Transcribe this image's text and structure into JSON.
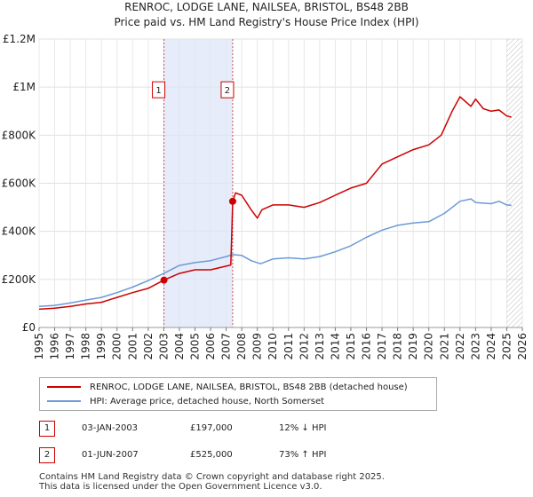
{
  "chart_data": {
    "type": "line",
    "title": "RENROC, LODGE LANE, NAILSEA, BRISTOL, BS48 2BB",
    "subtitle": "Price paid vs. HM Land Registry's House Price Index (HPI)",
    "xlim": [
      1995,
      2026
    ],
    "ylim": [
      0,
      1200000
    ],
    "x_ticks": [
      "1995",
      "1996",
      "1997",
      "1998",
      "1999",
      "2000",
      "2001",
      "2002",
      "2003",
      "2004",
      "2005",
      "2006",
      "2007",
      "2008",
      "2009",
      "2010",
      "2011",
      "2012",
      "2013",
      "2014",
      "2015",
      "2016",
      "2017",
      "2018",
      "2019",
      "2020",
      "2021",
      "2022",
      "2023",
      "2024",
      "2025",
      "2026"
    ],
    "y_ticks": [
      {
        "value": 0,
        "label": "£0"
      },
      {
        "value": 200000,
        "label": "£200K"
      },
      {
        "value": 400000,
        "label": "£400K"
      },
      {
        "value": 600000,
        "label": "£600K"
      },
      {
        "value": 800000,
        "label": "£800K"
      },
      {
        "value": 1000000,
        "label": "£1M"
      },
      {
        "value": 1200000,
        "label": "£1.2M"
      }
    ],
    "series": [
      {
        "name": "RENROC, LODGE LANE, NAILSEA, BRISTOL, BS48 2BB (detached house)",
        "color": "#cc0000",
        "x": [
          1995.0,
          1996.0,
          1997.0,
          1998.0,
          1999.0,
          2000.0,
          2001.0,
          2002.0,
          2003.01,
          2004.0,
          2005.0,
          2006.0,
          2007.0,
          2007.3,
          2007.42,
          2007.6,
          2008.0,
          2008.6,
          2009.0,
          2009.3,
          2010.0,
          2011.0,
          2012.0,
          2013.0,
          2014.0,
          2015.0,
          2016.0,
          2016.5,
          2017.0,
          2018.0,
          2019.0,
          2020.0,
          2020.8,
          2021.5,
          2022.0,
          2022.7,
          2023.0,
          2023.5,
          2024.0,
          2024.5,
          2025.0,
          2025.3
        ],
        "y": [
          76000,
          80000,
          88000,
          98000,
          105000,
          125000,
          145000,
          163000,
          197000,
          225000,
          240000,
          240000,
          255000,
          260000,
          525000,
          560000,
          550000,
          490000,
          455000,
          490000,
          510000,
          510000,
          500000,
          520000,
          550000,
          580000,
          600000,
          640000,
          680000,
          710000,
          740000,
          760000,
          800000,
          900000,
          960000,
          920000,
          950000,
          910000,
          900000,
          905000,
          880000,
          875000
        ]
      },
      {
        "name": "HPI: Average price, detached house, North Somerset",
        "color": "#6b9ad6",
        "x": [
          1995.0,
          1996.0,
          1997.0,
          1998.0,
          1999.0,
          2000.0,
          2001.0,
          2002.0,
          2003.0,
          2004.0,
          2005.0,
          2006.0,
          2007.0,
          2007.42,
          2008.0,
          2008.6,
          2009.2,
          2010.0,
          2011.0,
          2012.0,
          2013.0,
          2014.0,
          2015.0,
          2016.0,
          2017.0,
          2018.0,
          2019.0,
          2020.0,
          2021.0,
          2022.0,
          2022.7,
          2023.0,
          2024.0,
          2024.5,
          2025.0,
          2025.3
        ],
        "y": [
          88000,
          92000,
          102000,
          114000,
          125000,
          145000,
          168000,
          195000,
          225000,
          258000,
          270000,
          278000,
          295000,
          303000,
          300000,
          278000,
          265000,
          285000,
          290000,
          285000,
          295000,
          315000,
          340000,
          375000,
          405000,
          425000,
          435000,
          440000,
          475000,
          525000,
          535000,
          520000,
          515000,
          525000,
          510000,
          508000
        ]
      }
    ],
    "annotations": [
      {
        "label": "1",
        "x": 2003.01,
        "y": 197000
      },
      {
        "label": "2",
        "x": 2007.42,
        "y": 525000
      }
    ],
    "shaded_region": [
      2003.01,
      2007.42
    ],
    "hatched_region_from": 2025.0
  },
  "legend": {
    "property_label": "RENROC, LODGE LANE, NAILSEA, BRISTOL, BS48 2BB (detached house)",
    "hpi_label": "HPI: Average price, detached house, North Somerset"
  },
  "transactions": [
    {
      "num": "1",
      "date": "03-JAN-2003",
      "price": "£197,000",
      "hpi_change": "12% ↓ HPI"
    },
    {
      "num": "2",
      "date": "01-JUN-2007",
      "price": "£525,000",
      "hpi_change": "73% ↑ HPI"
    }
  ],
  "footer": {
    "line1": "Contains HM Land Registry data © Crown copyright and database right 2025.",
    "line2": "This data is licensed under the Open Government Licence v3.0."
  }
}
